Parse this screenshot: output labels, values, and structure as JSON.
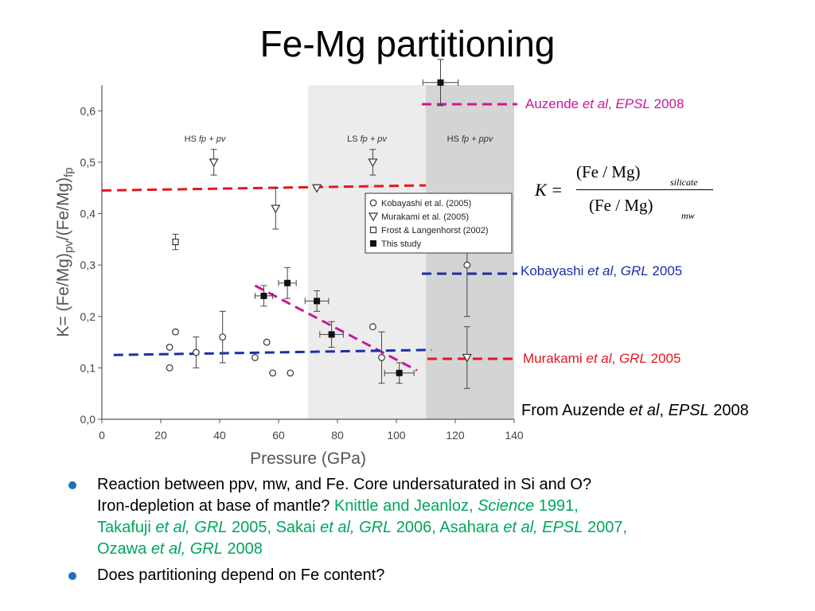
{
  "slide": {
    "title": "Fe-Mg partitioning"
  },
  "chart_data": {
    "type": "scatter",
    "title": "",
    "xlabel": "Pressure (GPa)",
    "ylabel_parts": [
      "K= (Fe/Mg)",
      "pv",
      "/(Fe/Mg)",
      "fp"
    ],
    "xlim": [
      0,
      140
    ],
    "ylim": [
      0.0,
      0.65
    ],
    "xticks": [
      0,
      20,
      40,
      60,
      80,
      100,
      120,
      140
    ],
    "yticks": [
      0.0,
      0.1,
      0.2,
      0.3,
      0.4,
      0.5,
      0.6
    ],
    "ytick_labels": [
      "0,0",
      "0,1",
      "0,2",
      "0,3",
      "0,4",
      "0,5",
      "0,6"
    ],
    "regions": [
      {
        "label_parts": [
          "HS ",
          "fp + pv"
        ],
        "from": 0,
        "to": 70,
        "color": "#ffffff"
      },
      {
        "label_parts": [
          "LS ",
          "fp + pv"
        ],
        "from": 70,
        "to": 110,
        "color": "#ececec"
      },
      {
        "label_parts": [
          "HS ",
          "fp + ppv"
        ],
        "from": 110,
        "to": 140,
        "color": "#d4d4d4"
      }
    ],
    "legend": [
      "Kobayashi et al. (2005)",
      "Murakami et al. (2005)",
      "Frost & Langenhorst (2002)",
      "This study"
    ],
    "legend_position": "center-right",
    "series": [
      {
        "name": "Kobayashi et al. (2005)",
        "marker": "circle-open",
        "points": [
          {
            "x": 23,
            "y": 0.1
          },
          {
            "x": 23,
            "y": 0.14
          },
          {
            "x": 25,
            "y": 0.17
          },
          {
            "x": 32,
            "y": 0.13,
            "yerr": 0.03
          },
          {
            "x": 41,
            "y": 0.16,
            "yerr": 0.05
          },
          {
            "x": 52,
            "y": 0.12
          },
          {
            "x": 56,
            "y": 0.15
          },
          {
            "x": 58,
            "y": 0.09
          },
          {
            "x": 64,
            "y": 0.09
          },
          {
            "x": 92,
            "y": 0.18
          },
          {
            "x": 95,
            "y": 0.12,
            "yerr": 0.05
          },
          {
            "x": 124,
            "y": 0.3,
            "yerr": 0.1
          }
        ]
      },
      {
        "name": "Murakami et al. (2005)",
        "marker": "triangle-down-open",
        "points": [
          {
            "x": 38,
            "y": 0.5,
            "yerr": 0.025
          },
          {
            "x": 59,
            "y": 0.41,
            "yerr": 0.04
          },
          {
            "x": 73,
            "y": 0.45
          },
          {
            "x": 92,
            "y": 0.5,
            "yerr": 0.025
          },
          {
            "x": 124,
            "y": 0.12,
            "yerr": 0.06
          }
        ]
      },
      {
        "name": "Frost & Langenhorst (2002)",
        "marker": "square-open",
        "points": [
          {
            "x": 25,
            "y": 0.345,
            "yerr": 0.015
          }
        ]
      },
      {
        "name": "This study",
        "marker": "square-filled",
        "points": [
          {
            "x": 55,
            "y": 0.24,
            "xerr": 3,
            "yerr": 0.02
          },
          {
            "x": 63,
            "y": 0.265,
            "xerr": 3,
            "yerr": 0.03
          },
          {
            "x": 73,
            "y": 0.23,
            "xerr": 4,
            "yerr": 0.02
          },
          {
            "x": 78,
            "y": 0.165,
            "xerr": 4,
            "yerr": 0.025
          },
          {
            "x": 101,
            "y": 0.09,
            "xerr": 5,
            "yerr": 0.02
          },
          {
            "x": 115,
            "y": 0.655,
            "xerr": 6,
            "yerr": 0.045
          }
        ]
      }
    ],
    "annotation_lines": [
      {
        "color": "#e8141e",
        "x": [
          0,
          110
        ],
        "y": [
          0.445,
          0.455
        ]
      },
      {
        "color": "#c8179b",
        "x": [
          52,
          107
        ],
        "y": [
          0.26,
          0.095
        ]
      },
      {
        "color": "#1b2ea8",
        "x": [
          4,
          112
        ],
        "y": [
          0.125,
          0.135
        ]
      }
    ]
  },
  "references": {
    "auzende": {
      "author": "Auzende ",
      "etal": "et al",
      "comma": ", ",
      "journal": "EPSL",
      "year": " 2008",
      "color": "#c8179b"
    },
    "kobayashi": {
      "author": "Kobayashi ",
      "etal": "et al",
      "comma": ", ",
      "journal": "GRL",
      "year": " 2005",
      "color": "#1b2ea8"
    },
    "murakami": {
      "author": "Murakami ",
      "etal": "et al",
      "comma": ", ",
      "journal": "GRL",
      "year": " 2005",
      "color": "#e8141e"
    }
  },
  "source": {
    "prefix": "From Auzende ",
    "etal": "et al",
    "comma": ", ",
    "journal": "EPSL",
    "year": " 2008"
  },
  "formula": {
    "lhs": "K =",
    "numerator": "(Fe / Mg)",
    "num_sub": "silicate",
    "denominator": "(Fe / Mg)",
    "den_sub": "mw"
  },
  "bullets": {
    "b1_line1": "Reaction between ppv, mw, and Fe. Core undersaturated in Si and O?",
    "b1_line2": "Iron-depletion at base of mantle? ",
    "c1_a": "Knittle and Jeanloz, ",
    "c1_b": "Science",
    "c1_c": " 1991,",
    "c2_a": "Takafuji ",
    "c2_b": "et al, GRL",
    "c2_c": " 2005, Sakai ",
    "c2_d": "et al, GRL",
    "c2_e": " 2006,  Asahara ",
    "c2_f": "et al, EPSL",
    "c2_g": " 2007,",
    "c3_a": "Ozawa ",
    "c3_b": "et al, GRL",
    "c3_c": " 2008",
    "b2": "Does partitioning depend on Fe content?"
  },
  "colors": {
    "bullet": "#1f6fc0",
    "citation": "#00a65a"
  }
}
